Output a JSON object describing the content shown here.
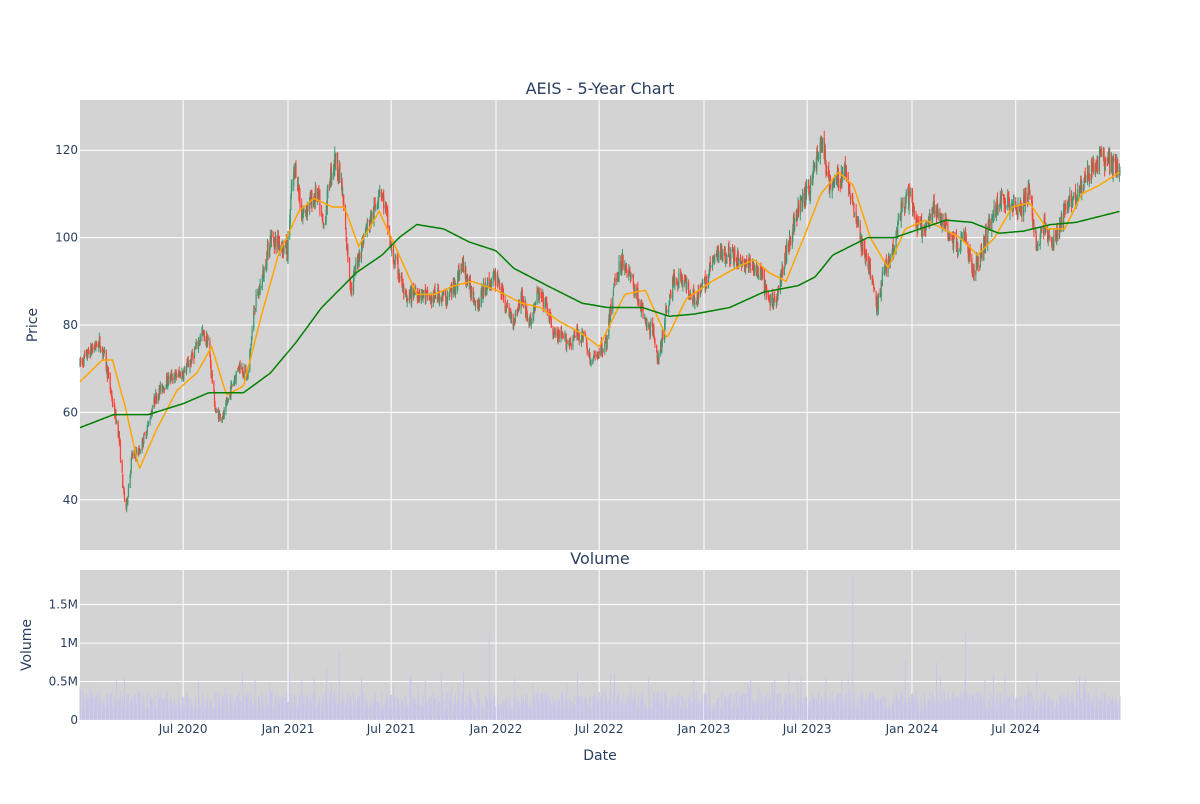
{
  "chart_data": [
    {
      "type": "candlestick",
      "title": "AEIS - 5-Year Chart",
      "xlabel": "",
      "ylabel": "Price",
      "ylim": [
        28.5,
        131.5
      ],
      "yticks": [
        40,
        60,
        80,
        100,
        120
      ],
      "grid": true,
      "colors": {
        "up": "#3d9970",
        "down": "#ff4136",
        "ma_short": "#ffa500",
        "ma_long": "#008000",
        "background": "#d3d3d3"
      },
      "candle_anchors": [
        [
          "2020-01-02",
          71
        ],
        [
          "2020-01-20",
          74
        ],
        [
          "2020-02-05",
          76
        ],
        [
          "2020-02-14",
          73
        ],
        [
          "2020-02-26",
          64
        ],
        [
          "2020-03-10",
          55
        ],
        [
          "2020-03-18",
          42
        ],
        [
          "2020-03-23",
          38
        ],
        [
          "2020-04-02",
          50
        ],
        [
          "2020-04-15",
          51
        ],
        [
          "2020-04-28",
          56
        ],
        [
          "2020-05-12",
          63
        ],
        [
          "2020-05-26",
          66
        ],
        [
          "2020-06-09",
          68
        ],
        [
          "2020-07-01",
          69
        ],
        [
          "2020-07-15",
          72
        ],
        [
          "2020-08-03",
          78
        ],
        [
          "2020-08-14",
          76
        ],
        [
          "2020-08-27",
          60
        ],
        [
          "2020-09-10",
          59
        ],
        [
          "2020-09-24",
          66
        ],
        [
          "2020-10-08",
          71
        ],
        [
          "2020-10-22",
          68
        ],
        [
          "2020-11-03",
          84
        ],
        [
          "2020-11-16",
          90
        ],
        [
          "2020-12-01",
          100
        ],
        [
          "2020-12-15",
          99
        ],
        [
          "2020-12-31",
          97
        ],
        [
          "2021-01-08",
          112
        ],
        [
          "2021-01-15",
          116
        ],
        [
          "2021-01-25",
          105
        ],
        [
          "2021-02-08",
          108
        ],
        [
          "2021-02-22",
          110
        ],
        [
          "2021-03-04",
          102
        ],
        [
          "2021-03-16",
          114
        ],
        [
          "2021-03-25",
          118
        ],
        [
          "2021-04-05",
          112
        ],
        [
          "2021-04-14",
          98
        ],
        [
          "2021-04-22",
          88
        ],
        [
          "2021-05-05",
          96
        ],
        [
          "2021-05-18",
          102
        ],
        [
          "2021-06-01",
          106
        ],
        [
          "2021-06-11",
          112
        ],
        [
          "2021-06-22",
          106
        ],
        [
          "2021-07-02",
          96
        ],
        [
          "2021-07-15",
          92
        ],
        [
          "2021-07-28",
          85
        ],
        [
          "2021-08-10",
          88
        ],
        [
          "2021-08-24",
          87
        ],
        [
          "2021-09-08",
          86
        ],
        [
          "2021-09-22",
          87
        ],
        [
          "2021-10-06",
          86
        ],
        [
          "2021-10-20",
          89
        ],
        [
          "2021-11-03",
          94
        ],
        [
          "2021-11-17",
          88
        ],
        [
          "2021-12-01",
          85
        ],
        [
          "2021-12-14",
          89
        ],
        [
          "2022-01-04",
          91
        ],
        [
          "2022-01-18",
          84
        ],
        [
          "2022-02-01",
          81
        ],
        [
          "2022-02-15",
          87
        ],
        [
          "2022-03-01",
          80
        ],
        [
          "2022-03-15",
          87
        ],
        [
          "2022-03-29",
          85
        ],
        [
          "2022-04-12",
          78
        ],
        [
          "2022-04-26",
          77
        ],
        [
          "2022-05-10",
          76
        ],
        [
          "2022-05-24",
          78
        ],
        [
          "2022-06-07",
          77
        ],
        [
          "2022-06-16",
          71
        ],
        [
          "2022-06-30",
          74
        ],
        [
          "2022-07-14",
          76
        ],
        [
          "2022-07-28",
          90
        ],
        [
          "2022-08-11",
          95
        ],
        [
          "2022-08-25",
          91
        ],
        [
          "2022-09-08",
          86
        ],
        [
          "2022-09-22",
          80
        ],
        [
          "2022-10-06",
          78
        ],
        [
          "2022-10-13",
          71
        ],
        [
          "2022-10-25",
          82
        ],
        [
          "2022-11-08",
          90
        ],
        [
          "2022-11-22",
          91
        ],
        [
          "2022-12-06",
          88
        ],
        [
          "2022-12-20",
          86
        ],
        [
          "2023-01-04",
          90
        ],
        [
          "2023-01-18",
          95
        ],
        [
          "2023-02-01",
          97
        ],
        [
          "2023-02-15",
          96
        ],
        [
          "2023-03-01",
          95
        ],
        [
          "2023-03-15",
          94
        ],
        [
          "2023-03-29",
          93
        ],
        [
          "2023-04-12",
          91
        ],
        [
          "2023-04-26",
          85
        ],
        [
          "2023-05-10",
          87
        ],
        [
          "2023-05-24",
          96
        ],
        [
          "2023-06-07",
          103
        ],
        [
          "2023-06-21",
          108
        ],
        [
          "2023-07-05",
          111
        ],
        [
          "2023-07-19",
          119
        ],
        [
          "2023-07-27",
          122
        ],
        [
          "2023-08-09",
          112
        ],
        [
          "2023-08-23",
          113
        ],
        [
          "2023-09-06",
          115
        ],
        [
          "2023-09-20",
          108
        ],
        [
          "2023-10-04",
          99
        ],
        [
          "2023-10-18",
          93
        ],
        [
          "2023-10-31",
          84
        ],
        [
          "2023-11-14",
          93
        ],
        [
          "2023-11-28",
          97
        ],
        [
          "2023-12-12",
          106
        ],
        [
          "2023-12-27",
          110
        ],
        [
          "2024-01-10",
          103
        ],
        [
          "2024-01-24",
          101
        ],
        [
          "2024-02-07",
          106
        ],
        [
          "2024-02-21",
          105
        ],
        [
          "2024-03-06",
          101
        ],
        [
          "2024-03-20",
          98
        ],
        [
          "2024-04-03",
          100
        ],
        [
          "2024-04-17",
          92
        ],
        [
          "2024-05-01",
          96
        ],
        [
          "2024-05-15",
          103
        ],
        [
          "2024-05-29",
          107
        ],
        [
          "2024-06-12",
          109
        ],
        [
          "2024-06-26",
          108
        ],
        [
          "2024-07-10",
          106
        ],
        [
          "2024-07-24",
          111
        ],
        [
          "2024-08-07",
          98
        ],
        [
          "2024-08-21",
          103
        ],
        [
          "2024-09-04",
          98
        ],
        [
          "2024-09-18",
          103
        ],
        [
          "2024-10-02",
          109
        ],
        [
          "2024-10-16",
          110
        ],
        [
          "2024-10-30",
          113
        ],
        [
          "2024-11-13",
          116
        ],
        [
          "2024-11-27",
          118
        ],
        [
          "2024-12-11",
          117
        ],
        [
          "2024-12-30",
          115
        ]
      ],
      "ma_short": [
        [
          "2020-01-02",
          67
        ],
        [
          "2020-02-10",
          72
        ],
        [
          "2020-02-28",
          72
        ],
        [
          "2020-03-20",
          62
        ],
        [
          "2020-04-15",
          47
        ],
        [
          "2020-05-15",
          56
        ],
        [
          "2020-06-20",
          65
        ],
        [
          "2020-07-25",
          69
        ],
        [
          "2020-08-20",
          75
        ],
        [
          "2020-09-15",
          64
        ],
        [
          "2020-10-15",
          66
        ],
        [
          "2020-11-15",
          82
        ],
        [
          "2020-12-15",
          96
        ],
        [
          "2021-01-20",
          106
        ],
        [
          "2021-02-15",
          109
        ],
        [
          "2021-03-20",
          107
        ],
        [
          "2021-04-10",
          107
        ],
        [
          "2021-05-05",
          98
        ],
        [
          "2021-06-10",
          106
        ],
        [
          "2021-07-15",
          96
        ],
        [
          "2021-08-15",
          87
        ],
        [
          "2021-09-15",
          87
        ],
        [
          "2021-10-20",
          89
        ],
        [
          "2021-11-20",
          90
        ],
        [
          "2022-01-01",
          88
        ],
        [
          "2022-02-15",
          85
        ],
        [
          "2022-03-20",
          84
        ],
        [
          "2022-04-20",
          81
        ],
        [
          "2022-06-01",
          78
        ],
        [
          "2022-07-01",
          75
        ],
        [
          "2022-08-15",
          87
        ],
        [
          "2022-09-20",
          88
        ],
        [
          "2022-10-28",
          77
        ],
        [
          "2022-12-01",
          86
        ],
        [
          "2023-01-15",
          90
        ],
        [
          "2023-02-25",
          93
        ],
        [
          "2023-03-30",
          95
        ],
        [
          "2023-04-25",
          92
        ],
        [
          "2023-05-25",
          90
        ],
        [
          "2023-06-25",
          100
        ],
        [
          "2023-07-25",
          110
        ],
        [
          "2023-08-25",
          115
        ],
        [
          "2023-09-20",
          112
        ],
        [
          "2023-10-20",
          100
        ],
        [
          "2023-11-20",
          93
        ],
        [
          "2023-12-20",
          102
        ],
        [
          "2024-01-25",
          104
        ],
        [
          "2024-02-25",
          102
        ],
        [
          "2024-03-25",
          100
        ],
        [
          "2024-04-25",
          96
        ],
        [
          "2024-05-25",
          100
        ],
        [
          "2024-06-25",
          107
        ],
        [
          "2024-07-25",
          108
        ],
        [
          "2024-08-25",
          102
        ],
        [
          "2024-09-25",
          102
        ],
        [
          "2024-10-25",
          110
        ],
        [
          "2024-11-25",
          112
        ],
        [
          "2024-12-30",
          115
        ]
      ],
      "ma_long": [
        [
          "2020-01-02",
          56.5
        ],
        [
          "2020-03-01",
          59.5
        ],
        [
          "2020-05-01",
          59.5
        ],
        [
          "2020-07-01",
          62
        ],
        [
          "2020-08-15",
          64.5
        ],
        [
          "2020-10-15",
          64.5
        ],
        [
          "2020-12-01",
          69
        ],
        [
          "2021-01-15",
          76
        ],
        [
          "2021-03-01",
          84
        ],
        [
          "2021-05-01",
          92
        ],
        [
          "2021-06-15",
          96
        ],
        [
          "2021-07-15",
          100
        ],
        [
          "2021-08-15",
          103
        ],
        [
          "2021-10-01",
          102
        ],
        [
          "2021-11-15",
          99
        ],
        [
          "2022-01-01",
          97
        ],
        [
          "2022-02-01",
          93
        ],
        [
          "2022-04-01",
          89
        ],
        [
          "2022-06-01",
          85
        ],
        [
          "2022-07-15",
          84
        ],
        [
          "2022-09-15",
          84
        ],
        [
          "2022-11-01",
          82
        ],
        [
          "2022-12-15",
          82.5
        ],
        [
          "2023-02-15",
          84
        ],
        [
          "2023-04-15",
          87.5
        ],
        [
          "2023-06-15",
          89
        ],
        [
          "2023-07-15",
          91
        ],
        [
          "2023-08-15",
          96
        ],
        [
          "2023-10-15",
          100
        ],
        [
          "2023-12-01",
          100
        ],
        [
          "2024-01-15",
          102
        ],
        [
          "2024-03-01",
          104
        ],
        [
          "2024-04-15",
          103.5
        ],
        [
          "2024-06-01",
          101
        ],
        [
          "2024-07-15",
          101.5
        ],
        [
          "2024-09-01",
          103
        ],
        [
          "2024-10-15",
          103.5
        ],
        [
          "2024-12-30",
          106
        ]
      ]
    },
    {
      "type": "bar",
      "title": "Volume",
      "xlabel": "Date",
      "ylabel": "Volume",
      "ylim": [
        0,
        1950000
      ],
      "yticks": [
        0,
        500000,
        1000000,
        1500000
      ],
      "yticklabels": [
        "0",
        "0.5M",
        "1M",
        "1.5M"
      ],
      "xticks": [
        "2020-07-01",
        "2021-01-01",
        "2021-07-01",
        "2022-01-01",
        "2022-07-01",
        "2023-01-01",
        "2023-07-01",
        "2024-01-01",
        "2024-07-01"
      ],
      "xticklabels": [
        "Jul 2020",
        "Jan 2021",
        "Jul 2021",
        "Jan 2022",
        "Jul 2022",
        "Jan 2023",
        "Jul 2023",
        "Jan 2024",
        "Jul 2024"
      ],
      "xlim": [
        "2020-01-02",
        "2024-12-31"
      ],
      "grid": true,
      "colors": {
        "bar": "#c8c6e8",
        "background": "#d3d3d3"
      },
      "volume_spikes": [
        [
          "2020-01-20",
          420000
        ],
        [
          "2020-03-06",
          520000
        ],
        [
          "2020-03-20",
          560000
        ],
        [
          "2020-07-28",
          500000
        ],
        [
          "2020-08-15",
          920000
        ],
        [
          "2020-11-04",
          520000
        ],
        [
          "2020-11-30",
          480000
        ],
        [
          "2021-01-25",
          540000
        ],
        [
          "2021-02-16",
          560000
        ],
        [
          "2021-03-10",
          680000
        ],
        [
          "2021-04-01",
          900000
        ],
        [
          "2021-05-10",
          560000
        ],
        [
          "2021-08-05",
          580000
        ],
        [
          "2021-11-05",
          620000
        ],
        [
          "2021-12-20",
          1130000
        ],
        [
          "2022-02-03",
          560000
        ],
        [
          "2022-05-05",
          480000
        ],
        [
          "2022-07-28",
          600000
        ],
        [
          "2022-11-05",
          760000
        ],
        [
          "2023-05-05",
          520000
        ],
        [
          "2023-08-03",
          560000
        ],
        [
          "2023-09-19",
          1880000
        ],
        [
          "2023-10-28",
          560000
        ],
        [
          "2023-12-20",
          800000
        ],
        [
          "2024-02-13",
          750000
        ],
        [
          "2024-04-04",
          1130000
        ],
        [
          "2024-05-08",
          520000
        ],
        [
          "2024-08-07",
          620000
        ],
        [
          "2024-10-31",
          560000
        ]
      ],
      "volume_base": 280000
    }
  ]
}
